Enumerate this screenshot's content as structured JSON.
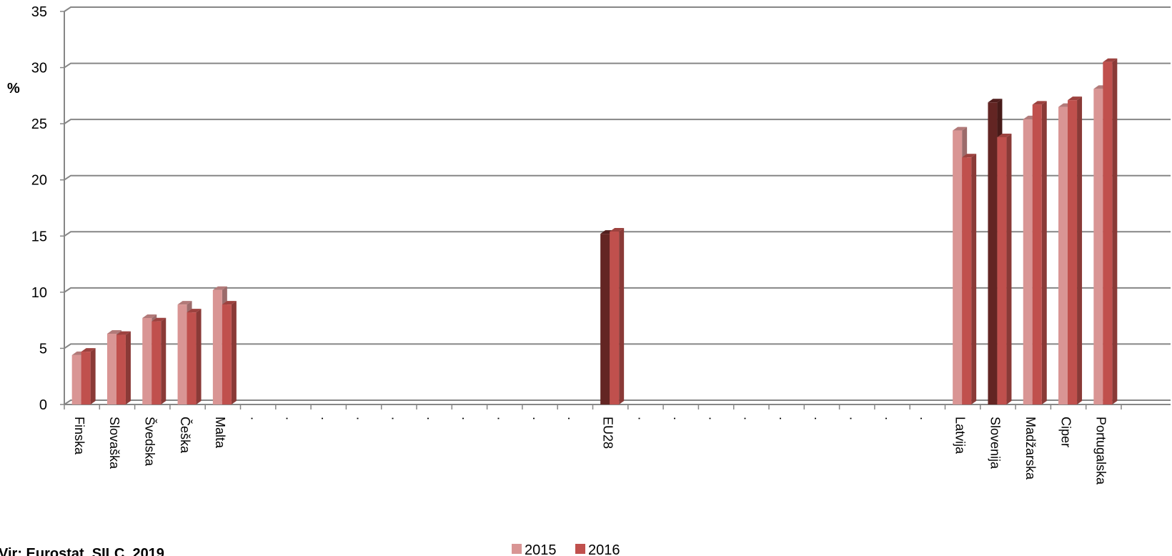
{
  "chart_data": {
    "type": "bar",
    "title": "",
    "ylabel": "%",
    "xlabel": "",
    "ylim": [
      0,
      35
    ],
    "yticks": [
      0,
      5,
      10,
      15,
      20,
      25,
      30,
      35
    ],
    "grid": true,
    "legend_position": "bottom-center",
    "categories": [
      "Finska",
      "Slovaška",
      "Švedska",
      "Češka",
      "Malta",
      ".",
      ".",
      ".",
      ".",
      ".",
      ".",
      ".",
      ".",
      ".",
      ".",
      "EU28",
      ".",
      ".",
      ".",
      ".",
      ".",
      ".",
      ".",
      ".",
      ".",
      "Latvija",
      "Slovenija",
      "Madžarska",
      "Ciper",
      "Portugalska"
    ],
    "series": [
      {
        "name": "2015",
        "color": "#d99594",
        "values": [
          4.4,
          6.3,
          7.7,
          8.9,
          10.2,
          null,
          null,
          null,
          null,
          null,
          null,
          null,
          null,
          null,
          null,
          15.2,
          null,
          null,
          null,
          null,
          null,
          null,
          null,
          null,
          null,
          24.4,
          26.9,
          25.4,
          26.5,
          28.1
        ]
      },
      {
        "name": "2016",
        "color": "#c0504d",
        "values": [
          4.7,
          6.2,
          7.4,
          8.2,
          8.9,
          null,
          null,
          null,
          null,
          null,
          null,
          null,
          null,
          null,
          null,
          15.4,
          null,
          null,
          null,
          null,
          null,
          null,
          null,
          null,
          null,
          22.0,
          23.8,
          26.7,
          27.1,
          30.5
        ]
      }
    ],
    "highlight": {
      "categories": [
        "EU28",
        "Slovenija"
      ],
      "series": "2015",
      "color": "#632523"
    }
  },
  "source": "Vir: Eurostat, SILC, 2019"
}
